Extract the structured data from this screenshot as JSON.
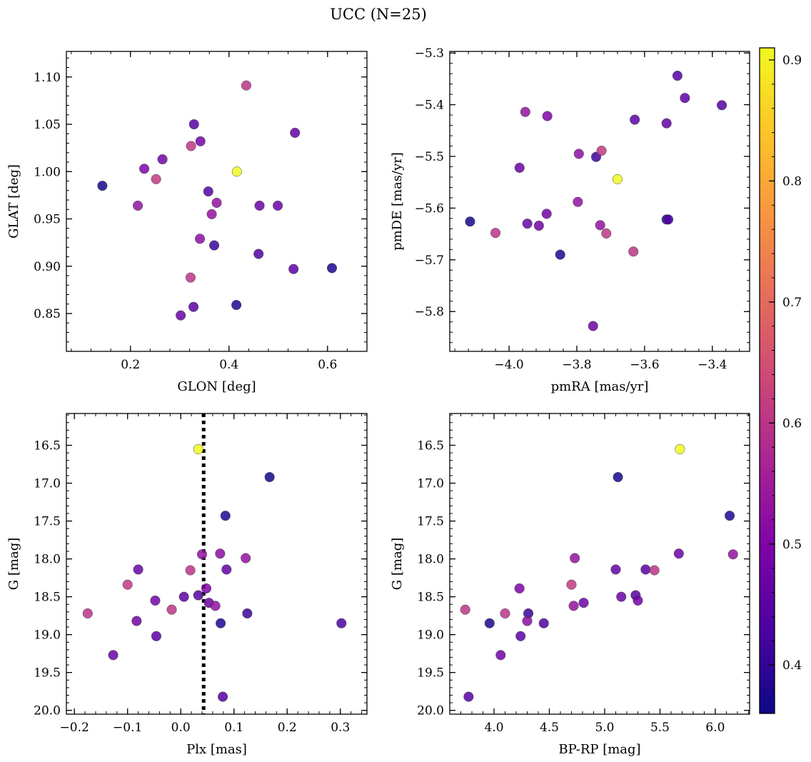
{
  "figure": {
    "title": "UCC (N=25)"
  },
  "colorbar": {
    "colormap": "plasma",
    "range": [
      0.36,
      0.91
    ],
    "ticks": [
      0.4,
      0.5,
      0.6,
      0.7,
      0.8,
      0.9
    ],
    "tick_labels": [
      "0.4",
      "0.5",
      "0.6",
      "0.7",
      "0.8",
      "0.9"
    ]
  },
  "chart_data": [
    {
      "type": "scatter",
      "id": "glon-glat",
      "xlabel": "GLON [deg]",
      "ylabel": "GLAT [deg]",
      "xlim": [
        0.07,
        0.68
      ],
      "ylim": [
        0.81,
        1.127
      ],
      "y_inverted": false,
      "xticks": [
        0.2,
        0.4,
        0.6
      ],
      "xtick_labels": [
        "0.2",
        "0.4",
        "0.6"
      ],
      "yticks": [
        0.85,
        0.9,
        0.95,
        1.0,
        1.05,
        1.1
      ],
      "ytick_labels": [
        "0.85",
        "0.90",
        "0.95",
        "1.00",
        "1.05",
        "1.10"
      ],
      "points": [
        {
          "x": 0.416,
          "y": 1.0,
          "c": 0.91
        },
        {
          "x": 0.435,
          "y": 1.091,
          "c": 0.6
        },
        {
          "x": 0.252,
          "y": 0.992,
          "c": 0.61
        },
        {
          "x": 0.323,
          "y": 1.027,
          "c": 0.6
        },
        {
          "x": 0.322,
          "y": 0.888,
          "c": 0.6
        },
        {
          "x": 0.365,
          "y": 0.955,
          "c": 0.53
        },
        {
          "x": 0.375,
          "y": 0.967,
          "c": 0.53
        },
        {
          "x": 0.215,
          "y": 0.964,
          "c": 0.53
        },
        {
          "x": 0.341,
          "y": 0.929,
          "c": 0.52
        },
        {
          "x": 0.228,
          "y": 1.003,
          "c": 0.5
        },
        {
          "x": 0.265,
          "y": 1.013,
          "c": 0.48
        },
        {
          "x": 0.342,
          "y": 1.032,
          "c": 0.48
        },
        {
          "x": 0.462,
          "y": 0.964,
          "c": 0.47
        },
        {
          "x": 0.499,
          "y": 0.964,
          "c": 0.47
        },
        {
          "x": 0.302,
          "y": 0.848,
          "c": 0.47
        },
        {
          "x": 0.534,
          "y": 1.041,
          "c": 0.46
        },
        {
          "x": 0.531,
          "y": 0.897,
          "c": 0.45
        },
        {
          "x": 0.328,
          "y": 0.857,
          "c": 0.45
        },
        {
          "x": 0.329,
          "y": 1.05,
          "c": 0.44
        },
        {
          "x": 0.358,
          "y": 0.979,
          "c": 0.44
        },
        {
          "x": 0.46,
          "y": 0.913,
          "c": 0.43
        },
        {
          "x": 0.37,
          "y": 0.922,
          "c": 0.41
        },
        {
          "x": 0.609,
          "y": 0.898,
          "c": 0.38
        },
        {
          "x": 0.415,
          "y": 0.859,
          "c": 0.38
        },
        {
          "x": 0.143,
          "y": 0.985,
          "c": 0.37
        }
      ]
    },
    {
      "type": "scatter",
      "id": "pmra-pmde",
      "xlabel": "pmRA [mas/yr]",
      "ylabel": "pmDE [mas/yr]",
      "xlim": [
        -4.175,
        -3.29
      ],
      "ylim": [
        -5.877,
        -5.297
      ],
      "y_inverted": false,
      "xticks": [
        -4.0,
        -3.8,
        -3.6,
        -3.4
      ],
      "xtick_labels": [
        "−4.0",
        "−3.8",
        "−3.6",
        "−3.4"
      ],
      "yticks": [
        -5.8,
        -5.7,
        -5.6,
        -5.5,
        -5.4,
        -5.3
      ],
      "ytick_labels": [
        "−5.8",
        "−5.7",
        "−5.6",
        "−5.5",
        "−5.4",
        "−5.3"
      ],
      "points": [
        {
          "x": -3.68,
          "y": -5.544,
          "c": 0.91
        },
        {
          "x": -3.633,
          "y": -5.684,
          "c": 0.6
        },
        {
          "x": -3.727,
          "y": -5.489,
          "c": 0.61
        },
        {
          "x": -3.713,
          "y": -5.649,
          "c": 0.6
        },
        {
          "x": -4.04,
          "y": -5.648,
          "c": 0.6
        },
        {
          "x": -3.952,
          "y": -5.414,
          "c": 0.53
        },
        {
          "x": -3.797,
          "y": -5.588,
          "c": 0.53
        },
        {
          "x": -3.731,
          "y": -5.633,
          "c": 0.53
        },
        {
          "x": -3.794,
          "y": -5.495,
          "c": 0.52
        },
        {
          "x": -3.887,
          "y": -5.422,
          "c": 0.5
        },
        {
          "x": -3.889,
          "y": -5.611,
          "c": 0.48
        },
        {
          "x": -3.912,
          "y": -5.634,
          "c": 0.48
        },
        {
          "x": -3.946,
          "y": -5.63,
          "c": 0.47
        },
        {
          "x": -3.969,
          "y": -5.522,
          "c": 0.47
        },
        {
          "x": -3.752,
          "y": -5.828,
          "c": 0.47
        },
        {
          "x": -3.535,
          "y": -5.436,
          "c": 0.46
        },
        {
          "x": -3.481,
          "y": -5.387,
          "c": 0.45
        },
        {
          "x": -3.629,
          "y": -5.429,
          "c": 0.45
        },
        {
          "x": -3.372,
          "y": -5.401,
          "c": 0.44
        },
        {
          "x": -3.503,
          "y": -5.344,
          "c": 0.44
        },
        {
          "x": -3.53,
          "y": -5.622,
          "c": 0.43
        },
        {
          "x": -3.743,
          "y": -5.501,
          "c": 0.41
        },
        {
          "x": -3.535,
          "y": -5.622,
          "c": 0.38
        },
        {
          "x": -3.849,
          "y": -5.69,
          "c": 0.38
        },
        {
          "x": -4.115,
          "y": -5.626,
          "c": 0.37
        }
      ]
    },
    {
      "type": "scatter",
      "id": "plx-g",
      "xlabel": "Plx [mas]",
      "ylabel": "G [mag]",
      "xlim": [
        -0.215,
        0.35
      ],
      "ylim": [
        20.05,
        16.08
      ],
      "y_inverted": true,
      "vline": {
        "x": 0.043,
        "style": "dotted"
      },
      "xticks": [
        -0.2,
        -0.1,
        0.0,
        0.1,
        0.2,
        0.3
      ],
      "xtick_labels": [
        "−0.2",
        "−0.1",
        "0.0",
        "0.1",
        "0.2",
        "0.3"
      ],
      "yticks": [
        16.5,
        17.0,
        17.5,
        18.0,
        18.5,
        19.0,
        19.5,
        20.0
      ],
      "ytick_labels": [
        "16.5",
        "17.0",
        "17.5",
        "18.0",
        "18.5",
        "19.0",
        "19.5",
        "20.0"
      ],
      "points": [
        {
          "x": 0.033,
          "y": 16.55,
          "c": 0.91
        },
        {
          "x": -0.017,
          "y": 18.67,
          "c": 0.6
        },
        {
          "x": -0.1,
          "y": 18.34,
          "c": 0.61
        },
        {
          "x": 0.018,
          "y": 18.15,
          "c": 0.6
        },
        {
          "x": -0.175,
          "y": 18.72,
          "c": 0.6
        },
        {
          "x": 0.04,
          "y": 17.94,
          "c": 0.53
        },
        {
          "x": 0.122,
          "y": 17.99,
          "c": 0.53
        },
        {
          "x": 0.065,
          "y": 18.62,
          "c": 0.53
        },
        {
          "x": 0.074,
          "y": 17.93,
          "c": 0.52
        },
        {
          "x": 0.048,
          "y": 18.39,
          "c": 0.5
        },
        {
          "x": -0.083,
          "y": 18.82,
          "c": 0.48
        },
        {
          "x": -0.048,
          "y": 18.55,
          "c": 0.48
        },
        {
          "x": 0.053,
          "y": 18.58,
          "c": 0.47
        },
        {
          "x": -0.08,
          "y": 18.14,
          "c": 0.47
        },
        {
          "x": -0.127,
          "y": 19.27,
          "c": 0.47
        },
        {
          "x": 0.086,
          "y": 18.14,
          "c": 0.46
        },
        {
          "x": -0.046,
          "y": 19.02,
          "c": 0.45
        },
        {
          "x": 0.006,
          "y": 18.5,
          "c": 0.45
        },
        {
          "x": 0.079,
          "y": 19.82,
          "c": 0.44
        },
        {
          "x": 0.033,
          "y": 18.48,
          "c": 0.44
        },
        {
          "x": 0.302,
          "y": 18.85,
          "c": 0.43
        },
        {
          "x": 0.125,
          "y": 18.72,
          "c": 0.41
        },
        {
          "x": 0.084,
          "y": 17.43,
          "c": 0.38
        },
        {
          "x": 0.075,
          "y": 18.85,
          "c": 0.38
        },
        {
          "x": 0.167,
          "y": 16.92,
          "c": 0.37
        }
      ]
    },
    {
      "type": "scatter",
      "id": "bprp-g",
      "xlabel": "BP-RP [mag]",
      "ylabel": "G [mag]",
      "xlim": [
        3.6,
        6.31
      ],
      "ylim": [
        20.05,
        16.08
      ],
      "y_inverted": true,
      "xticks": [
        4.0,
        4.5,
        5.0,
        5.5,
        6.0
      ],
      "xtick_labels": [
        "4.0",
        "4.5",
        "5.0",
        "5.5",
        "6.0"
      ],
      "yticks": [
        16.5,
        17.0,
        17.5,
        18.0,
        18.5,
        19.0,
        19.5,
        20.0
      ],
      "ytick_labels": [
        "16.5",
        "17.0",
        "17.5",
        "18.0",
        "18.5",
        "19.0",
        "19.5",
        "20.0"
      ],
      "points": [
        {
          "x": 5.68,
          "y": 16.55,
          "c": 0.91
        },
        {
          "x": 3.74,
          "y": 18.67,
          "c": 0.6
        },
        {
          "x": 4.7,
          "y": 18.34,
          "c": 0.61
        },
        {
          "x": 5.45,
          "y": 18.15,
          "c": 0.6
        },
        {
          "x": 4.1,
          "y": 18.72,
          "c": 0.6
        },
        {
          "x": 4.73,
          "y": 17.99,
          "c": 0.53
        },
        {
          "x": 6.16,
          "y": 17.94,
          "c": 0.53
        },
        {
          "x": 4.72,
          "y": 18.62,
          "c": 0.53
        },
        {
          "x": 4.3,
          "y": 18.82,
          "c": 0.52
        },
        {
          "x": 4.23,
          "y": 18.39,
          "c": 0.5
        },
        {
          "x": 4.06,
          "y": 19.27,
          "c": 0.48
        },
        {
          "x": 5.3,
          "y": 18.55,
          "c": 0.48
        },
        {
          "x": 5.15,
          "y": 18.5,
          "c": 0.47
        },
        {
          "x": 4.81,
          "y": 18.58,
          "c": 0.47
        },
        {
          "x": 5.67,
          "y": 17.93,
          "c": 0.47
        },
        {
          "x": 5.1,
          "y": 18.14,
          "c": 0.46
        },
        {
          "x": 4.24,
          "y": 19.02,
          "c": 0.45
        },
        {
          "x": 5.37,
          "y": 18.14,
          "c": 0.45
        },
        {
          "x": 3.77,
          "y": 19.82,
          "c": 0.44
        },
        {
          "x": 5.28,
          "y": 18.48,
          "c": 0.44
        },
        {
          "x": 4.45,
          "y": 18.85,
          "c": 0.43
        },
        {
          "x": 4.31,
          "y": 18.72,
          "c": 0.41
        },
        {
          "x": 6.13,
          "y": 17.43,
          "c": 0.38
        },
        {
          "x": 3.96,
          "y": 18.85,
          "c": 0.38
        },
        {
          "x": 5.12,
          "y": 16.92,
          "c": 0.37
        }
      ]
    }
  ]
}
